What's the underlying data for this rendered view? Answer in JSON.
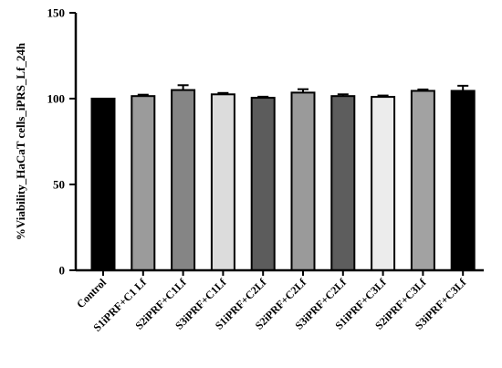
{
  "chart_data": {
    "type": "bar",
    "title": "",
    "xlabel": "",
    "ylabel": "%Viability_HaCaT cells_iPRS_Lf_24h",
    "ylim": [
      0,
      150
    ],
    "yticks": [
      0,
      50,
      100,
      150
    ],
    "grid": false,
    "legend": "none",
    "categories": [
      "Control",
      "S1iPRF+C1 Lf",
      "S2iPRF+C1Lf",
      "S3iPRF+C1Lf",
      "S1iPRF+C2Lf",
      "S2iPRF+C2Lf",
      "S3iPRF+C2Lf",
      "S1iPRF+C3Lf",
      "S2iPRF+C3Lf",
      "S3iPRF+C3Lf"
    ],
    "values": [
      100,
      101.5,
      105,
      102.5,
      100.5,
      103.5,
      101.5,
      101,
      104.5,
      104.5
    ],
    "errors": [
      0,
      0.8,
      2.8,
      0.8,
      0.6,
      2.0,
      1.0,
      0.8,
      0.8,
      3.0
    ],
    "colors": [
      "#000000",
      "#9b9b9b",
      "#858585",
      "#dcdcdc",
      "#5c5c5c",
      "#9a9a9a",
      "#5d5d5d",
      "#ececec",
      "#a2a2a2",
      "#000000"
    ]
  }
}
